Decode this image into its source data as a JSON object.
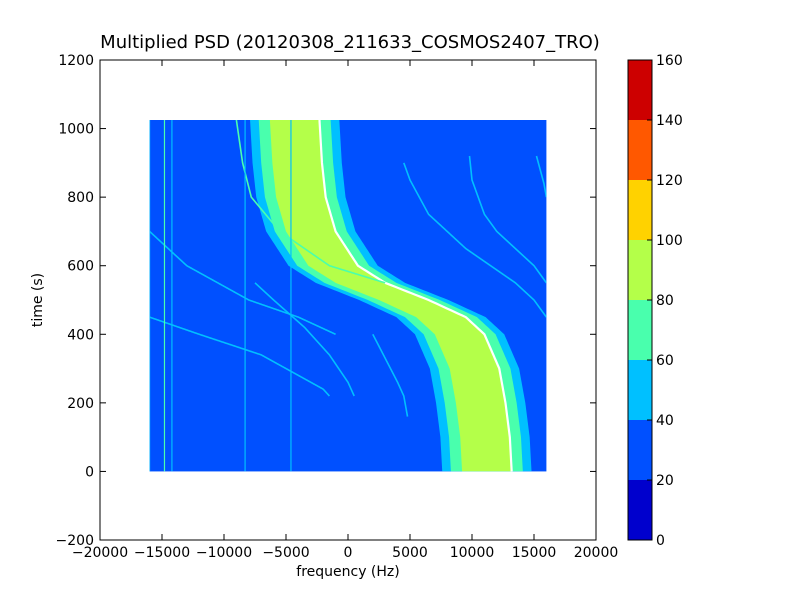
{
  "chart_data": {
    "type": "heatmap",
    "title": "Multiplied PSD (20120308_211633_COSMOS2407_TRO)",
    "xlabel": "frequency (Hz)",
    "ylabel": "time (s)",
    "xlim": [
      -20000,
      20000
    ],
    "ylim": [
      -200,
      1200
    ],
    "x_ticks": [
      -20000,
      -15000,
      -10000,
      -5000,
      0,
      5000,
      10000,
      15000,
      20000
    ],
    "x_tick_labels": [
      "−20000",
      "−15000",
      "−10000",
      "−5000",
      "0",
      "5000",
      "10000",
      "15000",
      "20000"
    ],
    "y_ticks": [
      -200,
      0,
      200,
      400,
      600,
      800,
      1000,
      1200
    ],
    "y_tick_labels": [
      "−200",
      "0",
      "200",
      "400",
      "600",
      "800",
      "1000",
      "1200"
    ],
    "data_extent": {
      "x": [
        -16000,
        16000
      ],
      "y": [
        0,
        1025
      ]
    },
    "background_level_color": "#0050ff",
    "colorbar": {
      "range": [
        0,
        160
      ],
      "ticks": [
        0,
        20,
        40,
        60,
        80,
        100,
        120,
        140,
        160
      ],
      "tick_labels": [
        "0",
        "20",
        "40",
        "60",
        "80",
        "100",
        "120",
        "140",
        "160"
      ],
      "levels": [
        {
          "from": 0,
          "to": 20,
          "color": "#0000cd"
        },
        {
          "from": 20,
          "to": 40,
          "color": "#0050ff"
        },
        {
          "from": 40,
          "to": 60,
          "color": "#00c0ff"
        },
        {
          "from": 60,
          "to": 80,
          "color": "#49ffad"
        },
        {
          "from": 80,
          "to": 100,
          "color": "#b4ff49"
        },
        {
          "from": 100,
          "to": 120,
          "color": "#ffd200"
        },
        {
          "from": 120,
          "to": 140,
          "color": "#ff5800"
        },
        {
          "from": 140,
          "to": 160,
          "color": "#cd0000"
        }
      ]
    },
    "main_signal": {
      "description_points_t": [
        0,
        100,
        200,
        300,
        400,
        450,
        500,
        550,
        600,
        700,
        800,
        900,
        1025
      ],
      "center_freq": [
        11200,
        11050,
        10700,
        10200,
        9000,
        7500,
        4500,
        1000,
        -1200,
        -3000,
        -3800,
        -4100,
        -4300
      ],
      "band_levels": [
        {
          "half_width": 3600,
          "color": "#00c0ff"
        },
        {
          "half_width": 2900,
          "color": "#49ffad"
        },
        {
          "half_width": 2000,
          "color": "#b4ff49"
        }
      ],
      "peak_offset": 2000,
      "peak_color": "#ffffff"
    },
    "side_traces": [
      {
        "t": [
          1025,
          900,
          800,
          700,
          600,
          550
        ],
        "f": [
          -9000,
          -8500,
          -7800,
          -5500,
          -1500,
          3000
        ],
        "color": "#49ffad"
      },
      {
        "t": [
          700,
          600,
          500,
          450,
          400
        ],
        "f": [
          -16000,
          -13000,
          -8000,
          -4000,
          -1000
        ],
        "color": "#00c0ff"
      },
      {
        "t": [
          550,
          500,
          420,
          340,
          260,
          220
        ],
        "f": [
          -7500,
          -6000,
          -3500,
          -1500,
          0,
          500
        ],
        "color": "#00c0ff"
      },
      {
        "t": [
          450,
          400,
          340,
          280,
          240,
          220
        ],
        "f": [
          -16000,
          -12000,
          -7000,
          -4000,
          -2000,
          -1500
        ],
        "color": "#00c0ff"
      },
      {
        "t": [
          900,
          850,
          750,
          650,
          600,
          550,
          500,
          450
        ],
        "f": [
          4500,
          5000,
          6500,
          9500,
          11500,
          13500,
          15000,
          16000
        ],
        "color": "#00c0ff"
      },
      {
        "t": [
          920,
          850,
          750,
          700,
          650,
          600,
          550
        ],
        "f": [
          9800,
          10000,
          11000,
          12000,
          13500,
          15000,
          16000
        ],
        "color": "#00c0ff"
      },
      {
        "t": [
          400,
          330,
          260,
          220,
          180,
          160
        ],
        "f": [
          2000,
          3000,
          4000,
          4500,
          4700,
          4800
        ],
        "color": "#00c0ff"
      },
      {
        "t": [
          920,
          880,
          840,
          800
        ],
        "f": [
          15200,
          15500,
          15800,
          16000
        ],
        "color": "#00c0ff"
      }
    ],
    "vertical_lines": [
      {
        "f": -16000,
        "color": "#00c0ff"
      },
      {
        "f": -14800,
        "color": "#49ffad"
      },
      {
        "f": -14200,
        "color": "#00c0ff"
      },
      {
        "f": -8300,
        "color": "#00c0ff"
      },
      {
        "f": -4600,
        "color": "#00c0ff"
      }
    ]
  }
}
